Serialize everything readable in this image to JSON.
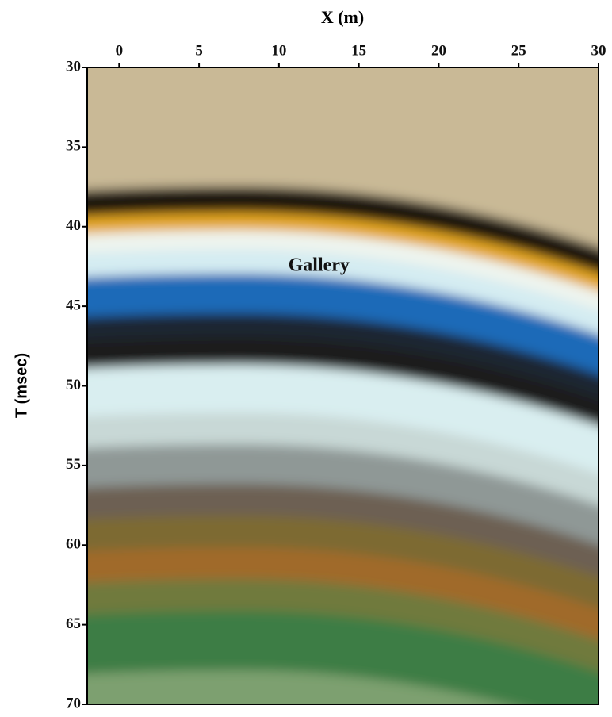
{
  "chart_data": {
    "type": "image",
    "x_label": "X (m)",
    "y_label": "T (msec)",
    "annotation": {
      "text": "Gallery",
      "x": 12.5,
      "y": 42.5
    },
    "xlim": [
      -2,
      30
    ],
    "xticks": [
      0,
      5,
      10,
      15,
      20,
      25,
      30
    ],
    "ylim": [
      30,
      70
    ],
    "yticks": [
      30,
      35,
      40,
      45,
      50,
      55,
      60,
      65,
      70
    ],
    "y_inverted": true,
    "x_axis_position": "top"
  }
}
